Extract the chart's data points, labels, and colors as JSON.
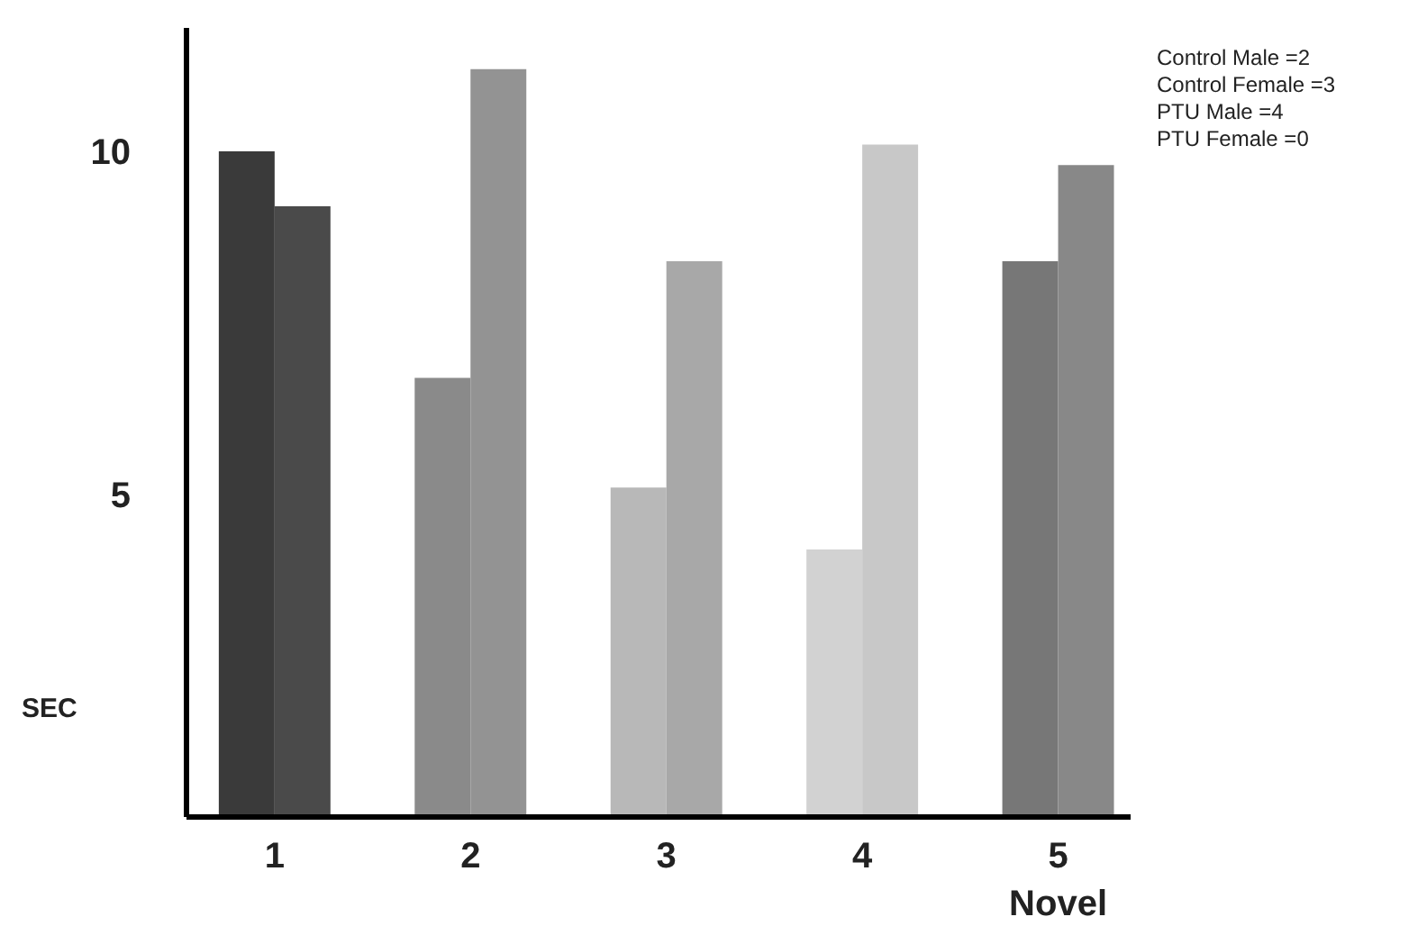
{
  "chart_data": {
    "type": "bar",
    "ylabel": "SEC",
    "categories": [
      "1",
      "2",
      "3",
      "4",
      "5\nNovel"
    ],
    "series": [
      {
        "values": [
          10.0,
          6.7,
          5.1,
          4.2,
          8.4
        ],
        "colors": [
          "#3a3a3a",
          "#8a8a8a",
          "#b8b8b8",
          "#d2d2d2",
          "#777777"
        ]
      },
      {
        "values": [
          9.2,
          11.2,
          8.4,
          10.1,
          9.8
        ],
        "colors": [
          "#4a4a4a",
          "#939393",
          "#a8a8a8",
          "#c8c8c8",
          "#888888"
        ]
      }
    ],
    "ylim": [
      0.3,
      11.8
    ],
    "yticks": [
      5,
      10
    ],
    "grid": false,
    "annotations": [
      "Control Male =2",
      "Control Female =3",
      "PTU Male =4",
      "PTU Female =0"
    ]
  }
}
